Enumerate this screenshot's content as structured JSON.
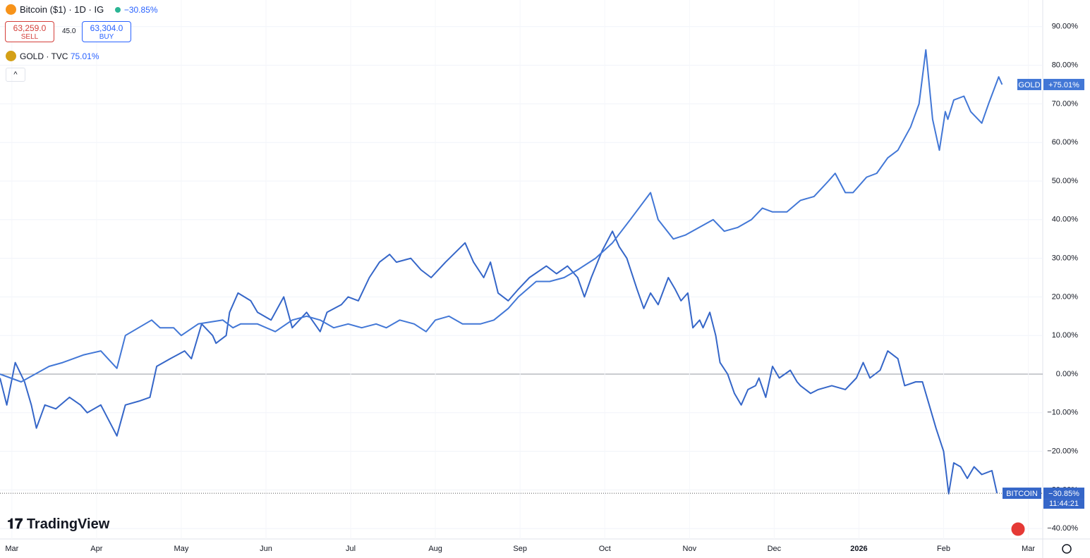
{
  "header": {
    "symbol": "Bitcoin ($1) · 1D · IG",
    "change": "−30.85%",
    "sell_price": "63,259.0",
    "sell_label": "SELL",
    "spread": "45.0",
    "buy_price": "63,304.0",
    "buy_label": "BUY",
    "compare": "GOLD · TVC",
    "compare_change": "75.01%",
    "brand": "TradingView",
    "timer": "11:44:21"
  },
  "chart_data": {
    "type": "line",
    "xlim": [
      -0.14,
      12.17
    ],
    "ylim": [
      -42.7,
      96.9
    ],
    "xticks": [
      {
        "value": 0,
        "label": "Mar"
      },
      {
        "value": 1,
        "label": "Apr"
      },
      {
        "value": 2,
        "label": "May"
      },
      {
        "value": 3,
        "label": "Jun"
      },
      {
        "value": 4,
        "label": "Jul"
      },
      {
        "value": 5,
        "label": "Aug"
      },
      {
        "value": 6,
        "label": "Sep"
      },
      {
        "value": 7,
        "label": "Oct"
      },
      {
        "value": 8,
        "label": "Nov"
      },
      {
        "value": 9,
        "label": "Dec"
      },
      {
        "value": 10,
        "label": "2026"
      },
      {
        "value": 11,
        "label": "Feb"
      },
      {
        "value": 12,
        "label": "Mar"
      }
    ],
    "yticks": [
      {
        "value": 90,
        "label": "90.00%"
      },
      {
        "value": 80,
        "label": "80.00%"
      },
      {
        "value": 70,
        "label": "70.00%"
      },
      {
        "value": 60,
        "label": "60.00%"
      },
      {
        "value": 50,
        "label": "50.00%"
      },
      {
        "value": 40,
        "label": "40.00%"
      },
      {
        "value": 30,
        "label": "30.00%"
      },
      {
        "value": 20,
        "label": "20.00%"
      },
      {
        "value": 10,
        "label": "10.00%"
      },
      {
        "value": 0,
        "label": "0.00%"
      },
      {
        "value": -10,
        "label": "−10.00%"
      },
      {
        "value": -20,
        "label": "−20.00%"
      },
      {
        "value": -30,
        "label": "−30.00%"
      },
      {
        "value": -40,
        "label": "−40.00%"
      }
    ],
    "grid": true,
    "series": [
      {
        "name": "BITCOIN",
        "color": "#3566c8",
        "last_label": "−30.85%",
        "x": [
          -0.14,
          -0.06,
          0.04,
          0.15,
          0.23,
          0.29,
          0.39,
          0.52,
          0.68,
          0.81,
          0.89,
          1.05,
          1.24,
          1.34,
          1.5,
          1.63,
          1.71,
          1.87,
          2.04,
          2.12,
          2.24,
          2.37,
          2.41,
          2.53,
          2.57,
          2.67,
          2.82,
          2.9,
          3.06,
          3.21,
          3.31,
          3.48,
          3.64,
          3.72,
          3.89,
          3.97,
          4.09,
          4.22,
          4.34,
          4.46,
          4.54,
          4.71,
          4.83,
          4.95,
          5.12,
          5.35,
          5.45,
          5.57,
          5.65,
          5.74,
          5.86,
          5.98,
          6.11,
          6.31,
          6.43,
          6.56,
          6.68,
          6.76,
          6.84,
          6.97,
          7.09,
          7.17,
          7.26,
          7.38,
          7.46,
          7.54,
          7.63,
          7.75,
          7.83,
          7.9,
          7.98,
          8.04,
          8.12,
          8.16,
          8.24,
          8.31,
          8.36,
          8.45,
          8.53,
          8.61,
          8.69,
          8.78,
          8.82,
          8.9,
          8.98,
          9.06,
          9.19,
          9.27,
          9.31,
          9.43,
          9.52,
          9.68,
          9.84,
          9.97,
          10.05,
          10.13,
          10.25,
          10.34,
          10.46,
          10.54,
          10.67,
          10.75,
          10.83,
          10.91,
          11.0,
          11.06,
          11.12,
          11.2,
          11.28,
          11.36,
          11.45,
          11.57,
          11.63
        ],
        "values": [
          -1,
          -8,
          3,
          -2,
          -8,
          -14,
          -8,
          -9,
          -6,
          -8,
          -10,
          -8,
          -16,
          -8,
          -7,
          -6,
          2,
          4,
          6,
          4,
          13,
          10,
          8,
          10,
          16,
          21,
          19,
          16,
          14,
          20,
          12,
          16,
          11,
          16,
          18,
          20,
          19,
          25,
          29,
          31,
          29,
          30,
          27,
          25,
          29,
          34,
          29,
          25,
          29,
          21,
          19,
          22,
          25,
          28,
          26,
          28,
          25,
          20,
          25,
          32,
          37,
          33,
          30,
          22,
          17,
          21,
          18,
          25,
          22,
          19,
          21,
          12,
          14,
          12,
          16,
          10,
          3,
          0,
          -5,
          -8,
          -4,
          -3,
          -1,
          -6,
          2,
          -1,
          1,
          -2,
          -3,
          -5,
          -4,
          -3,
          -4,
          -1,
          3,
          -1,
          1,
          6,
          4,
          -3,
          -2,
          -2,
          -8,
          -14,
          -20,
          -31,
          -23,
          -24,
          -27,
          -24,
          -26,
          -25,
          -30.85
        ]
      },
      {
        "name": "GOLD",
        "color": "#4277d6",
        "last_label": "+75.01%",
        "x": [
          -0.14,
          0.11,
          0.44,
          0.6,
          0.85,
          1.05,
          1.24,
          1.34,
          1.65,
          1.75,
          1.91,
          2.0,
          2.2,
          2.49,
          2.61,
          2.7,
          2.9,
          3.11,
          3.31,
          3.48,
          3.64,
          3.8,
          3.97,
          4.13,
          4.3,
          4.42,
          4.58,
          4.75,
          4.89,
          5.0,
          5.16,
          5.32,
          5.53,
          5.69,
          5.86,
          5.98,
          6.19,
          6.35,
          6.52,
          6.68,
          6.89,
          7.09,
          7.3,
          7.54,
          7.63,
          7.81,
          7.95,
          8.28,
          8.41,
          8.57,
          8.73,
          8.86,
          8.98,
          9.15,
          9.31,
          9.47,
          9.64,
          9.72,
          9.84,
          9.93,
          10.09,
          10.21,
          10.34,
          10.46,
          10.61,
          10.71,
          10.79,
          10.87,
          10.95,
          11.02,
          11.05,
          11.12,
          11.24,
          11.32,
          11.45,
          11.53,
          11.65,
          11.69
        ],
        "values": [
          0,
          -2,
          2,
          3,
          5,
          6,
          1.5,
          10,
          14,
          12,
          12,
          10,
          13,
          14,
          12,
          13,
          13,
          11,
          14,
          15,
          14,
          12,
          13,
          12,
          13,
          12,
          14,
          13,
          11,
          14,
          15,
          13,
          13,
          14,
          17,
          20,
          24,
          24,
          25,
          27,
          30,
          34,
          40,
          47,
          40,
          35,
          36,
          40,
          37,
          38,
          40,
          43,
          42,
          42,
          45,
          46,
          50,
          52,
          47,
          47,
          51,
          52,
          56,
          58,
          64,
          70,
          84,
          66,
          58,
          68,
          66,
          71,
          72,
          68,
          65,
          70,
          77,
          75.01
        ]
      }
    ]
  }
}
